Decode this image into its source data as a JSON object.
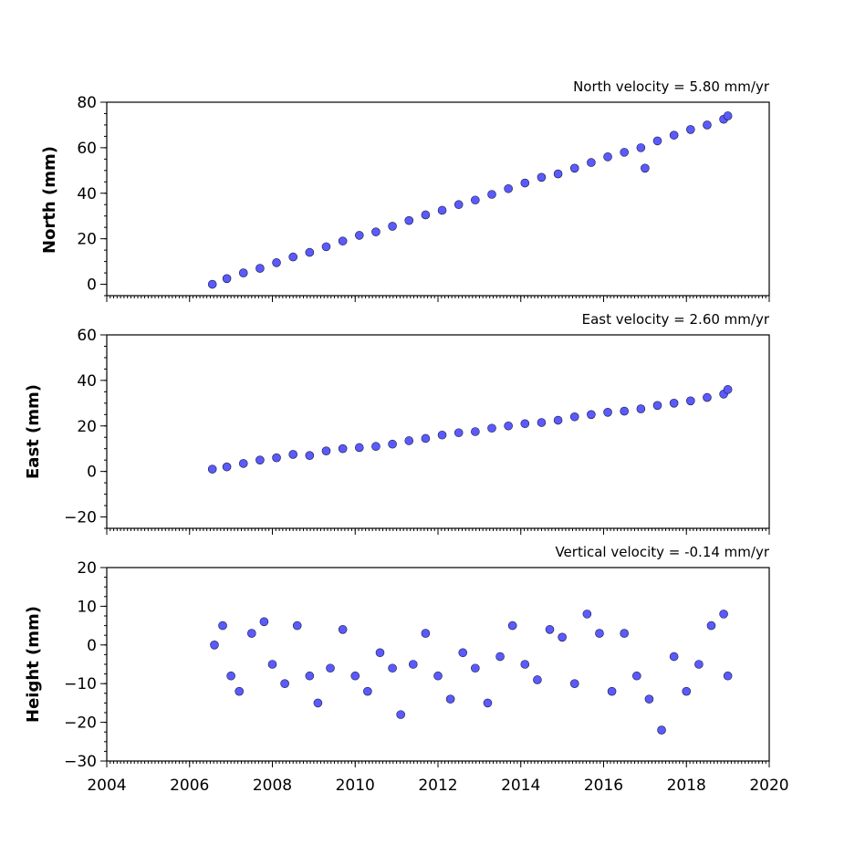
{
  "chart_data": [
    {
      "type": "scatter",
      "title": "North velocity = 5.80 mm/yr",
      "ylabel": "North (mm)",
      "xlim": [
        2004,
        2020
      ],
      "ylim": [
        -5,
        80
      ],
      "yticks": [
        0,
        20,
        40,
        60,
        80
      ],
      "xticks": [
        2004,
        2006,
        2008,
        2010,
        2012,
        2014,
        2016,
        2018,
        2020
      ],
      "xtick_labels_shown": false,
      "marker_color": "#5a5aff",
      "series": [
        {
          "x": [
            2006.55,
            2006.9,
            2007.3,
            2007.7,
            2008.1,
            2008.5,
            2008.9,
            2009.3,
            2009.7,
            2010.1,
            2010.5,
            2010.9,
            2011.3,
            2011.7,
            2012.1,
            2012.5,
            2012.9,
            2013.3,
            2013.7,
            2014.1,
            2014.5,
            2014.9,
            2015.3,
            2015.7,
            2016.1,
            2016.5,
            2016.9,
            2017.0,
            2017.3,
            2017.7,
            2018.1,
            2018.5,
            2018.9,
            2019.0
          ],
          "y": [
            0,
            2.5,
            5,
            7,
            9.5,
            12,
            14,
            16.5,
            19,
            21.5,
            23,
            25.5,
            28,
            30.5,
            32.5,
            35,
            37,
            39.5,
            42,
            44.5,
            47,
            48.5,
            51,
            53.5,
            56,
            58,
            60,
            51,
            63,
            65.5,
            68,
            70,
            72.5,
            74
          ]
        }
      ]
    },
    {
      "type": "scatter",
      "title": "East velocity = 2.60 mm/yr",
      "ylabel": "East (mm)",
      "xlim": [
        2004,
        2020
      ],
      "ylim": [
        -25,
        60
      ],
      "yticks": [
        -20,
        0,
        20,
        40,
        60
      ],
      "ytick_labels": [
        "−20",
        "0",
        "20",
        "40",
        "60"
      ],
      "xticks": [
        2004,
        2006,
        2008,
        2010,
        2012,
        2014,
        2016,
        2018,
        2020
      ],
      "xtick_labels_shown": false,
      "marker_color": "#5a5aff",
      "series": [
        {
          "x": [
            2006.55,
            2006.9,
            2007.3,
            2007.7,
            2008.1,
            2008.5,
            2008.9,
            2009.3,
            2009.7,
            2010.1,
            2010.5,
            2010.9,
            2011.3,
            2011.7,
            2012.1,
            2012.5,
            2012.9,
            2013.3,
            2013.7,
            2014.1,
            2014.5,
            2014.9,
            2015.3,
            2015.7,
            2016.1,
            2016.5,
            2016.9,
            2017.3,
            2017.7,
            2018.1,
            2018.5,
            2018.9,
            2019.0
          ],
          "y": [
            1,
            2,
            3.5,
            5,
            6,
            7.5,
            7,
            9,
            10,
            10.5,
            11,
            12,
            13.5,
            14.5,
            16,
            17,
            17.5,
            19,
            20,
            21,
            21.5,
            22.5,
            24,
            25,
            26,
            26.5,
            27.5,
            29,
            30,
            31,
            32.5,
            34,
            36
          ]
        }
      ]
    },
    {
      "type": "scatter",
      "title": "Vertical velocity = -0.14 mm/yr",
      "ylabel": "Height (mm)",
      "xlim": [
        2004,
        2020
      ],
      "ylim": [
        -30,
        20
      ],
      "yticks": [
        -30,
        -20,
        -10,
        0,
        10,
        20
      ],
      "ytick_labels": [
        "−30",
        "−20",
        "−10",
        "0",
        "10",
        "20"
      ],
      "xticks": [
        2004,
        2006,
        2008,
        2010,
        2012,
        2014,
        2016,
        2018,
        2020
      ],
      "xtick_labels": [
        "2004",
        "2006",
        "2008",
        "2010",
        "2012",
        "2014",
        "2016",
        "2018",
        "2020"
      ],
      "marker_color": "#5a5aff",
      "series": [
        {
          "x": [
            2006.6,
            2006.8,
            2007.0,
            2007.2,
            2007.5,
            2007.8,
            2008.0,
            2008.3,
            2008.6,
            2008.9,
            2009.1,
            2009.4,
            2009.7,
            2010.0,
            2010.3,
            2010.6,
            2010.9,
            2011.1,
            2011.4,
            2011.7,
            2012.0,
            2012.3,
            2012.6,
            2012.9,
            2013.2,
            2013.5,
            2013.8,
            2014.1,
            2014.4,
            2014.7,
            2015.0,
            2015.3,
            2015.6,
            2015.9,
            2016.2,
            2016.5,
            2016.8,
            2017.1,
            2017.4,
            2017.7,
            2018.0,
            2018.3,
            2018.6,
            2018.9,
            2019.0
          ],
          "y": [
            0,
            5,
            -8,
            -12,
            3,
            6,
            -5,
            -10,
            5,
            -8,
            -15,
            -6,
            4,
            -8,
            -12,
            -2,
            -6,
            -18,
            -5,
            3,
            -8,
            -14,
            -2,
            -6,
            -15,
            -3,
            5,
            -5,
            -9,
            4,
            2,
            -10,
            8,
            3,
            -12,
            3,
            -8,
            -14,
            -22,
            -3,
            -12,
            -5,
            5,
            8,
            -8
          ]
        }
      ]
    }
  ]
}
